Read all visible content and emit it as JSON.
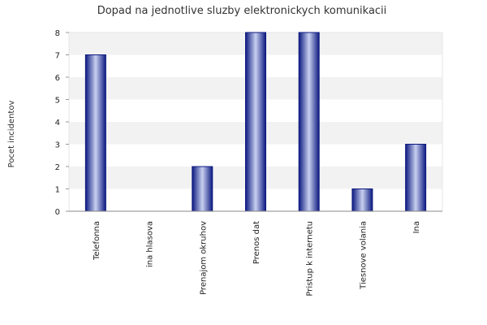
{
  "chart_data": {
    "type": "bar",
    "title": "Dopad na jednotlive sluzby elektronickych komunikacii",
    "xlabel": "",
    "ylabel": "Pocet incidentov",
    "categories": [
      "Telefonna",
      "ina hlasova",
      "Prenajom okruhov",
      "Prenos dat",
      "Pristup k internetu",
      "Tiesnove volania",
      "Ina"
    ],
    "values": [
      7,
      0,
      2,
      8,
      8,
      1,
      3
    ],
    "ylim": [
      0,
      8
    ],
    "yticks": [
      "0",
      "1",
      "2",
      "3",
      "4",
      "5",
      "6",
      "7",
      "8"
    ],
    "grid": true,
    "legend": "none",
    "colors": {
      "bar_dark": "#1a2a8c",
      "bar_light": "#c8d0f0",
      "band": "#f2f2f2",
      "grid": "#ffffff",
      "axis": "#888888"
    }
  }
}
